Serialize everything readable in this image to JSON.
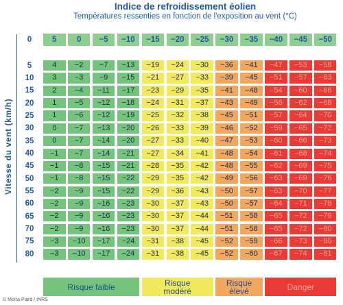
{
  "title": "Indice de refroidissement éolien",
  "subtitle": "Températures ressenties en fonction de l'exposition au vent (°C)",
  "chart_data": {
    "type": "table",
    "ylabel": "Vitesse du vent (km/h)",
    "temperatures": [
      5,
      0,
      -5,
      -10,
      -15,
      -20,
      -25,
      -30,
      -35,
      -40,
      -45,
      -50
    ],
    "speed_header": "0",
    "header_labels": [
      "5",
      "0",
      "−5",
      "−10",
      "−15",
      "−20",
      "−25",
      "−30",
      "−35",
      "−40",
      "−45",
      "−50"
    ],
    "speeds": [
      5,
      10,
      15,
      20,
      25,
      30,
      35,
      40,
      45,
      50,
      55,
      60,
      65,
      70,
      75,
      80
    ],
    "rows": [
      [
        "4",
        "−2",
        "−7",
        "−13",
        "−19",
        "−24",
        "−30",
        "−36",
        "−41",
        "−47",
        "−53",
        "−58"
      ],
      [
        "3",
        "−3",
        "−9",
        "−15",
        "−21",
        "−27",
        "−33",
        "−39",
        "−45",
        "−51",
        "−57",
        "−63"
      ],
      [
        "2",
        "−4",
        "−11",
        "−17",
        "−23",
        "−29",
        "−35",
        "−41",
        "−48",
        "−54",
        "−60",
        "−66"
      ],
      [
        "1",
        "−5",
        "−12",
        "−18",
        "−24",
        "−31",
        "−37",
        "−43",
        "−49",
        "−56",
        "−62",
        "−68"
      ],
      [
        "1",
        "−6",
        "−12",
        "−19",
        "−25",
        "−32",
        "−38",
        "−45",
        "−51",
        "−57",
        "−64",
        "−70"
      ],
      [
        "0",
        "−7",
        "−13",
        "−20",
        "−26",
        "−33",
        "−39",
        "−46",
        "−52",
        "−59",
        "−65",
        "−72"
      ],
      [
        "0",
        "−7",
        "−14",
        "−20",
        "−27",
        "−33",
        "−40",
        "−47",
        "−53",
        "−60",
        "−66",
        "−73"
      ],
      [
        "−1",
        "−7",
        "−14",
        "−21",
        "−27",
        "−34",
        "−41",
        "−48",
        "−54",
        "−61",
        "−68",
        "−74"
      ],
      [
        "−1",
        "−8",
        "−15",
        "−21",
        "−28",
        "−35",
        "−42",
        "−48",
        "−55",
        "−62",
        "−69",
        "−75"
      ],
      [
        "−1",
        "−8",
        "−15",
        "−22",
        "−29",
        "−35",
        "−42",
        "−49",
        "−56",
        "−63",
        "−69",
        "−76"
      ],
      [
        "−2",
        "−9",
        "−15",
        "−22",
        "−29",
        "−36",
        "−43",
        "−50",
        "−57",
        "−63",
        "−70",
        "−77"
      ],
      [
        "−2",
        "−9",
        "−16",
        "−23",
        "−30",
        "−37",
        "−43",
        "−50",
        "−57",
        "−64",
        "−71",
        "−78"
      ],
      [
        "−2",
        "−9",
        "−16",
        "−23",
        "−30",
        "−37",
        "−44",
        "−51",
        "−58",
        "−65",
        "−72",
        "−79"
      ],
      [
        "−2",
        "−9",
        "−16",
        "−23",
        "−30",
        "−37",
        "−44",
        "−51",
        "−58",
        "−65",
        "−72",
        "−80"
      ],
      [
        "−3",
        "−10",
        "−17",
        "−24",
        "−31",
        "−38",
        "−45",
        "−52",
        "−59",
        "−66",
        "−73",
        "−80"
      ],
      [
        "−3",
        "−10",
        "−17",
        "−24",
        "−31",
        "−38",
        "−45",
        "−52",
        "−60",
        "−67",
        "−74",
        "−81"
      ]
    ],
    "risk_by_column": [
      "faible",
      "faible",
      "faible",
      "faible",
      "modere",
      "modere",
      "modere",
      "eleve",
      "eleve",
      "danger",
      "danger",
      "danger"
    ],
    "colors": {
      "faible": "#74c47d",
      "modere": "#f2e95c",
      "eleve": "#f3a75e",
      "danger": "#e93a36",
      "header": "#8ecf8f"
    },
    "legend": [
      {
        "key": "faible",
        "lines": [
          "Risque faible"
        ]
      },
      {
        "key": "modere",
        "lines": [
          "Risque",
          "modéré"
        ]
      },
      {
        "key": "eleve",
        "lines": [
          "Risque",
          "élevé"
        ]
      },
      {
        "key": "danger",
        "lines": [
          "Danger"
        ]
      }
    ]
  },
  "credit": "© Moïra Piard / INRS"
}
